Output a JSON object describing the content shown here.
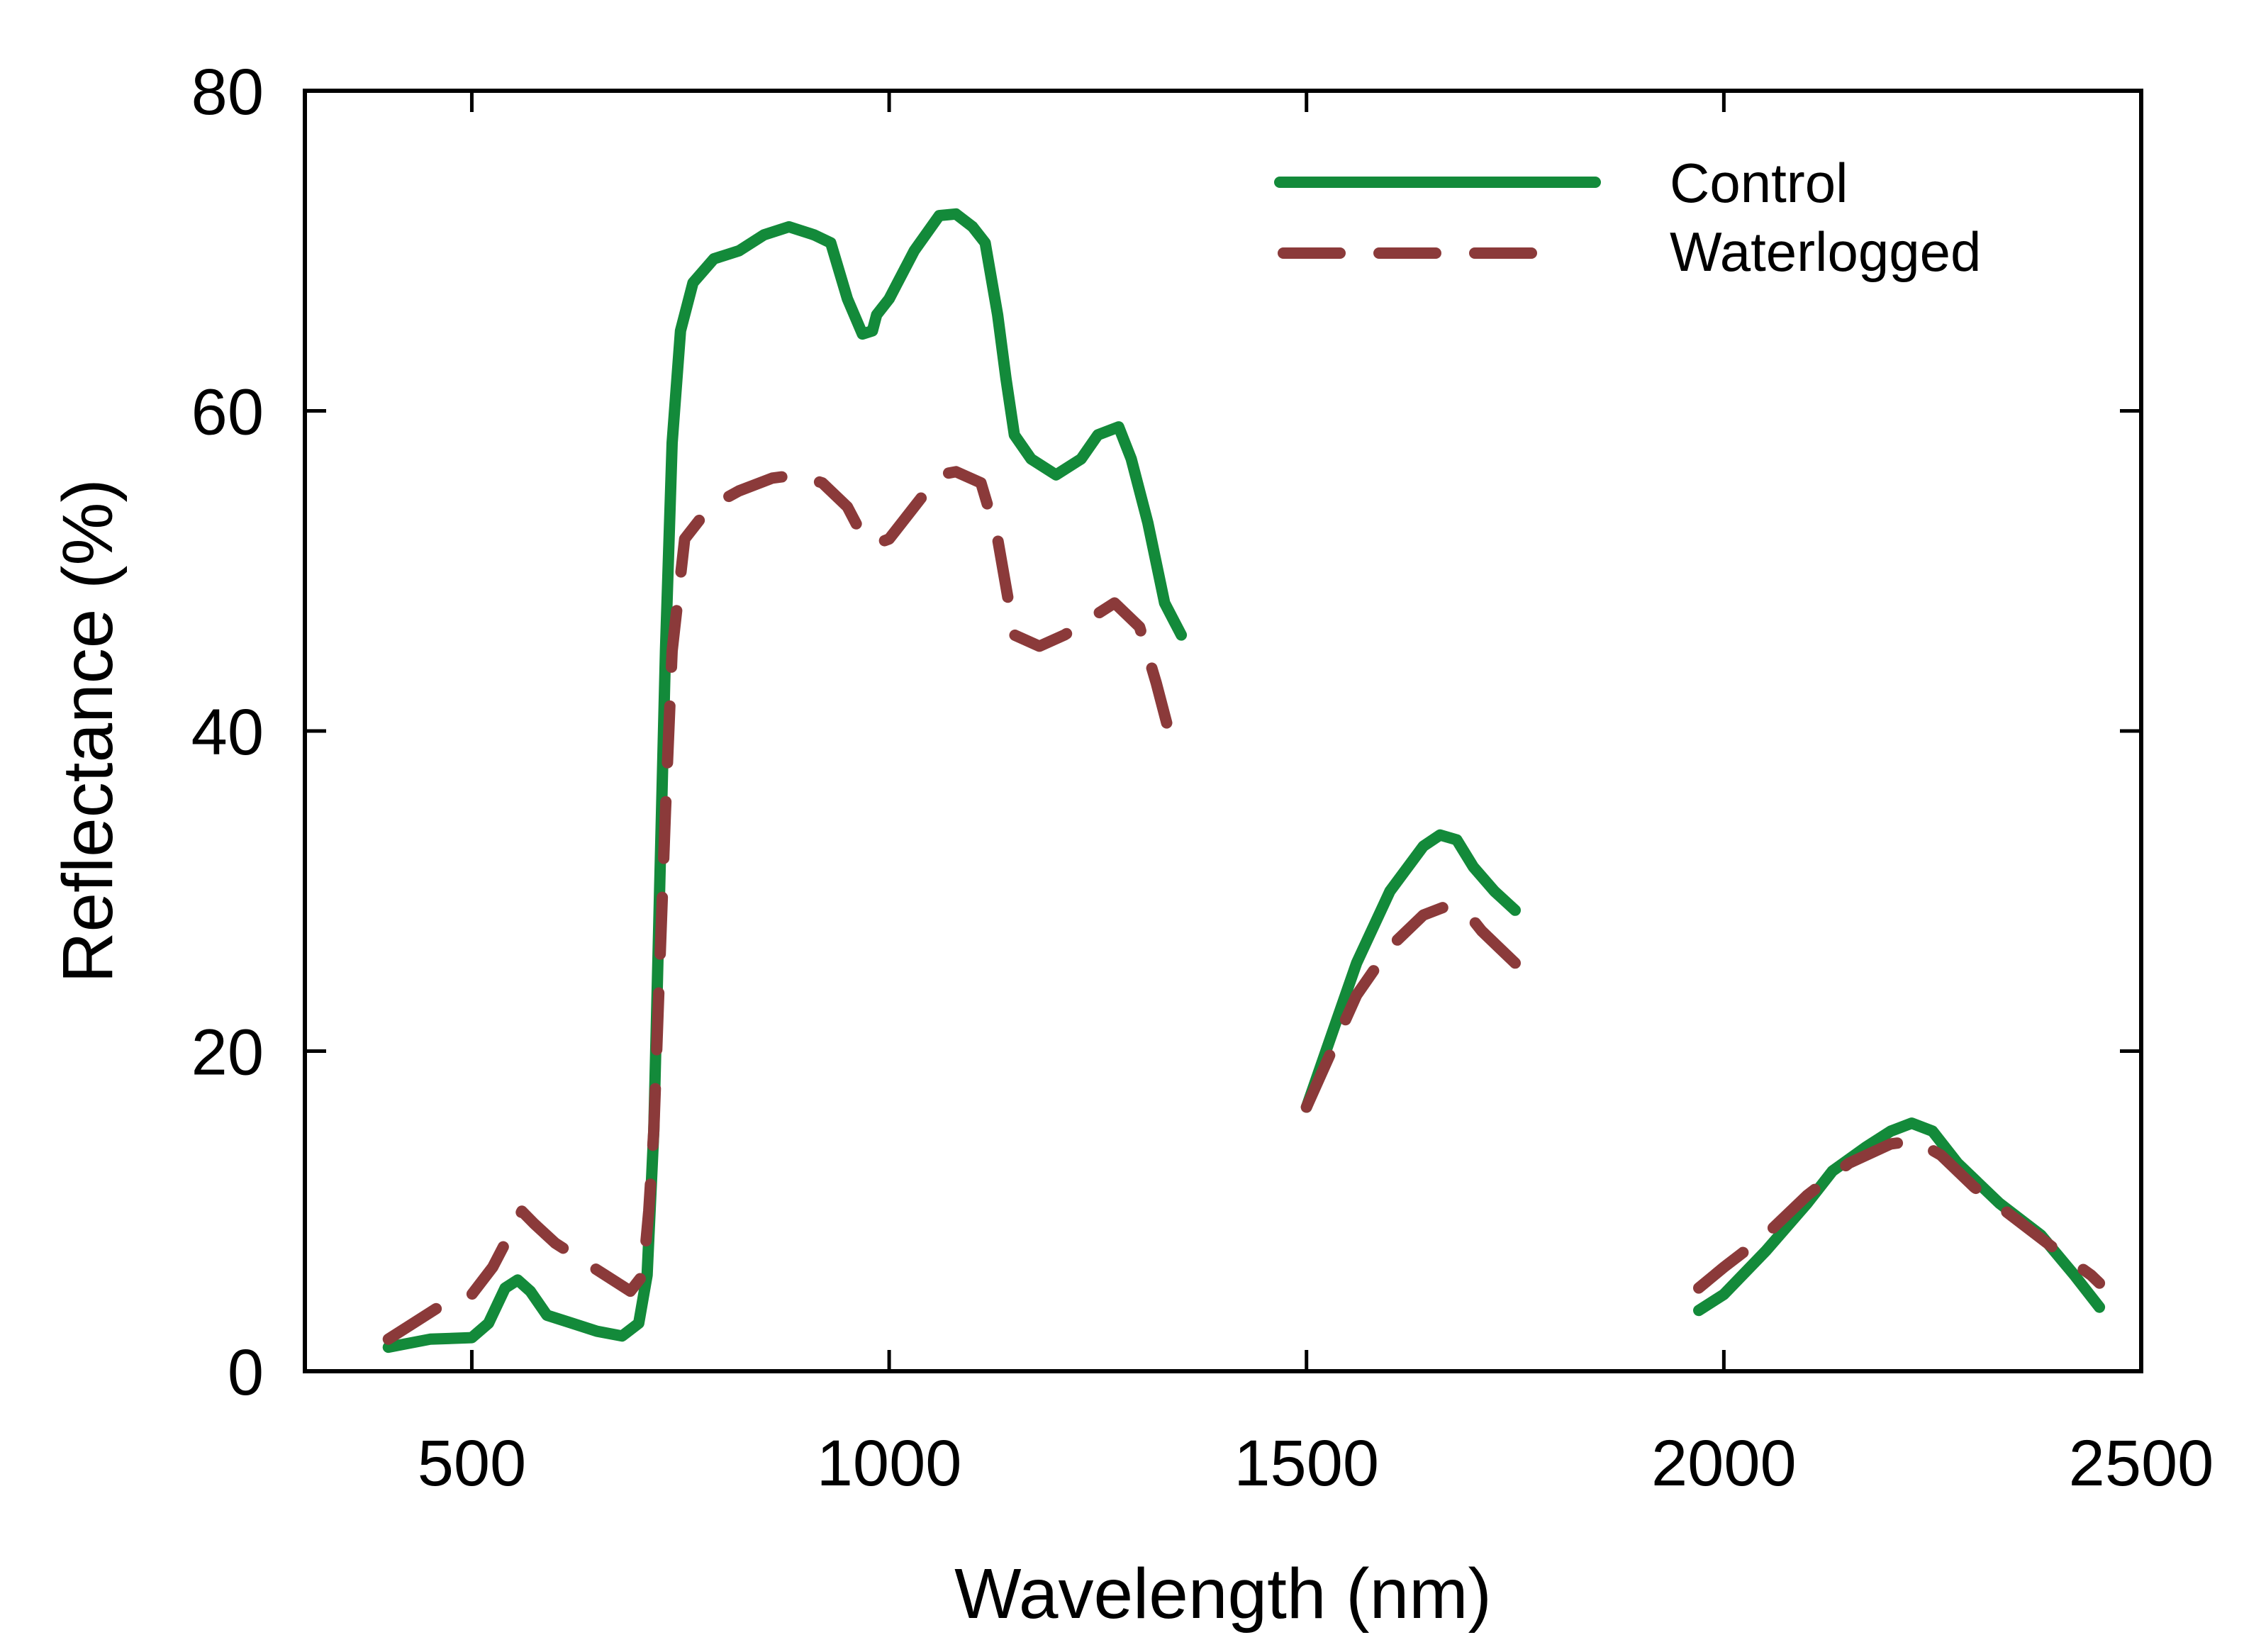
{
  "chart_data": {
    "type": "line",
    "title": "",
    "xlabel": "Wavelength (nm)",
    "ylabel": "Reflectance (%)",
    "xlim": [
      300,
      2500
    ],
    "ylim": [
      0,
      80
    ],
    "xticks": [
      500,
      1000,
      1500,
      2000,
      2500
    ],
    "yticks": [
      0,
      20,
      40,
      60,
      80
    ],
    "grid": false,
    "legend_position": "top-right",
    "series": [
      {
        "name": "Control",
        "color": "#138a3a",
        "style": "solid",
        "segments": [
          [
            [
              400,
              1.5
            ],
            [
              450,
              2.0
            ],
            [
              500,
              2.1
            ],
            [
              520,
              3.0
            ],
            [
              540,
              5.2
            ],
            [
              555,
              5.7
            ],
            [
              570,
              5.0
            ],
            [
              590,
              3.5
            ],
            [
              620,
              3.0
            ],
            [
              650,
              2.5
            ],
            [
              680,
              2.2
            ],
            [
              700,
              3.0
            ],
            [
              710,
              6
            ],
            [
              718,
              15
            ],
            [
              725,
              30
            ],
            [
              732,
              45
            ],
            [
              740,
              58
            ],
            [
              750,
              65
            ],
            [
              765,
              68
            ],
            [
              790,
              69.5
            ],
            [
              820,
              70
            ],
            [
              850,
              71
            ],
            [
              880,
              71.5
            ],
            [
              910,
              71
            ],
            [
              930,
              70.5
            ],
            [
              950,
              67
            ],
            [
              968,
              64.8
            ],
            [
              980,
              65
            ],
            [
              985,
              66
            ],
            [
              1000,
              67
            ],
            [
              1030,
              70
            ],
            [
              1060,
              72.2
            ],
            [
              1080,
              72.3
            ],
            [
              1100,
              71.5
            ],
            [
              1115,
              70.5
            ],
            [
              1130,
              66
            ],
            [
              1140,
              62
            ],
            [
              1150,
              58.5
            ],
            [
              1170,
              57
            ],
            [
              1200,
              56
            ],
            [
              1230,
              57
            ],
            [
              1250,
              58.5
            ],
            [
              1275,
              59
            ],
            [
              1290,
              57
            ],
            [
              1310,
              53
            ],
            [
              1330,
              48
            ],
            [
              1350,
              46
            ]
          ],
          [
            [
              1500,
              16.5
            ],
            [
              1530,
              21
            ],
            [
              1560,
              25.5
            ],
            [
              1600,
              30
            ],
            [
              1640,
              32.8
            ],
            [
              1660,
              33.5
            ],
            [
              1680,
              33.2
            ],
            [
              1700,
              31.5
            ],
            [
              1725,
              30
            ],
            [
              1750,
              28.8
            ]
          ],
          [
            [
              1970,
              3.8
            ],
            [
              2000,
              4.8
            ],
            [
              2050,
              7.5
            ],
            [
              2100,
              10.5
            ],
            [
              2130,
              12.5
            ],
            [
              2170,
              14
            ],
            [
              2200,
              15
            ],
            [
              2225,
              15.5
            ],
            [
              2250,
              15
            ],
            [
              2280,
              13
            ],
            [
              2330,
              10.5
            ],
            [
              2380,
              8.5
            ],
            [
              2420,
              6
            ],
            [
              2450,
              4
            ]
          ]
        ]
      },
      {
        "name": "Waterlogged",
        "color": "#8b3a3a",
        "style": "dashed",
        "segments": [
          [
            [
              400,
              2.0
            ],
            [
              430,
              3.0
            ],
            [
              460,
              4.0
            ],
            [
              500,
              4.8
            ],
            [
              525,
              6.5
            ],
            [
              545,
              8.5
            ],
            [
              560,
              10.0
            ],
            [
              575,
              9.2
            ],
            [
              600,
              8.0
            ],
            [
              630,
              7.0
            ],
            [
              660,
              6.0
            ],
            [
              690,
              5.0
            ],
            [
              705,
              6
            ],
            [
              712,
              10
            ],
            [
              718,
              15
            ],
            [
              725,
              25
            ],
            [
              732,
              35
            ],
            [
              740,
              45
            ],
            [
              755,
              52
            ],
            [
              785,
              54
            ],
            [
              820,
              55
            ],
            [
              860,
              55.8
            ],
            [
              890,
              56
            ],
            [
              920,
              55.5
            ],
            [
              950,
              54
            ],
            [
              970,
              52
            ],
            [
              985,
              51.7
            ],
            [
              1000,
              52
            ],
            [
              1030,
              54
            ],
            [
              1060,
              56
            ],
            [
              1080,
              56.2
            ],
            [
              1110,
              55.5
            ],
            [
              1130,
              52
            ],
            [
              1150,
              46
            ],
            [
              1180,
              45.3
            ],
            [
              1210,
              46
            ],
            [
              1240,
              47
            ],
            [
              1270,
              48
            ],
            [
              1300,
              46.5
            ],
            [
              1320,
              43
            ],
            [
              1340,
              39
            ],
            [
              1350,
              38.5
            ]
          ],
          [
            [
              1500,
              16.5
            ],
            [
              1530,
              20
            ],
            [
              1560,
              23.5
            ],
            [
              1600,
              26.5
            ],
            [
              1640,
              28.5
            ],
            [
              1665,
              29
            ],
            [
              1690,
              28.8
            ],
            [
              1710,
              27.5
            ],
            [
              1730,
              26.5
            ],
            [
              1750,
              25.5
            ]
          ],
          [
            [
              1970,
              5.2
            ],
            [
              2000,
              6.5
            ],
            [
              2050,
              8.5
            ],
            [
              2100,
              11
            ],
            [
              2150,
              13
            ],
            [
              2200,
              14.2
            ],
            [
              2230,
              14.4
            ],
            [
              2260,
              13.5
            ],
            [
              2300,
              11.5
            ],
            [
              2350,
              9.5
            ],
            [
              2400,
              7.5
            ],
            [
              2440,
              6
            ],
            [
              2450,
              5.5
            ]
          ]
        ]
      }
    ]
  }
}
